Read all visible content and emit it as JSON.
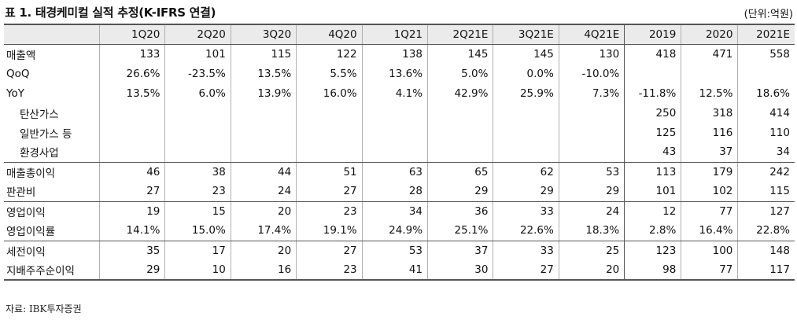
{
  "title": "표 1. 태경케미컬 실적 추정(K-IFRS 연결)",
  "unit": "(단위:억원)",
  "columns": [
    "1Q20",
    "2Q20",
    "3Q20",
    "4Q20",
    "1Q21",
    "2Q21E",
    "3Q21E",
    "4Q21E",
    "2019",
    "2020",
    "2021E"
  ],
  "rows": [
    {
      "label": "매출액",
      "values": [
        "133",
        "101",
        "115",
        "122",
        "138",
        "145",
        "145",
        "130",
        "418",
        "471",
        "558"
      ]
    },
    {
      "label": "QoQ",
      "values": [
        "26.6%",
        "-23.5%",
        "13.5%",
        "5.5%",
        "13.6%",
        "5.0%",
        "0.0%",
        "-10.0%",
        "",
        "",
        ""
      ]
    },
    {
      "label": "YoY",
      "values": [
        "13.5%",
        "6.0%",
        "13.9%",
        "16.0%",
        "4.1%",
        "42.9%",
        "25.9%",
        "7.3%",
        "-11.8%",
        "12.5%",
        "18.6%"
      ]
    },
    {
      "label": "탄산가스",
      "values": [
        "",
        "",
        "",
        "",
        "",
        "",
        "",
        "",
        "250",
        "318",
        "414"
      ]
    },
    {
      "label": "일반가스 등",
      "values": [
        "",
        "",
        "",
        "",
        "",
        "",
        "",
        "",
        "125",
        "116",
        "110"
      ]
    },
    {
      "label": "환경사업",
      "values": [
        "",
        "",
        "",
        "",
        "",
        "",
        "",
        "",
        "43",
        "37",
        "34"
      ]
    },
    {
      "label": "매출총이익",
      "values": [
        "46",
        "38",
        "44",
        "51",
        "63",
        "65",
        "62",
        "53",
        "113",
        "179",
        "242"
      ]
    },
    {
      "label": "판관비",
      "values": [
        "27",
        "23",
        "24",
        "27",
        "28",
        "29",
        "29",
        "29",
        "101",
        "102",
        "115"
      ]
    },
    {
      "label": "영업이익",
      "values": [
        "19",
        "15",
        "20",
        "23",
        "34",
        "36",
        "33",
        "24",
        "12",
        "77",
        "127"
      ]
    },
    {
      "label": "영업이익률",
      "values": [
        "14.1%",
        "15.0%",
        "17.4%",
        "19.1%",
        "24.9%",
        "25.1%",
        "22.6%",
        "18.3%",
        "2.8%",
        "16.4%",
        "22.8%"
      ]
    },
    {
      "label": "세전이익",
      "values": [
        "35",
        "17",
        "20",
        "27",
        "53",
        "37",
        "33",
        "25",
        "123",
        "100",
        "148"
      ]
    },
    {
      "label": "지배주주순이익",
      "values": [
        "29",
        "10",
        "16",
        "23",
        "41",
        "30",
        "27",
        "20",
        "98",
        "77",
        "117"
      ]
    }
  ],
  "source": "자료: IBK투자증권"
}
